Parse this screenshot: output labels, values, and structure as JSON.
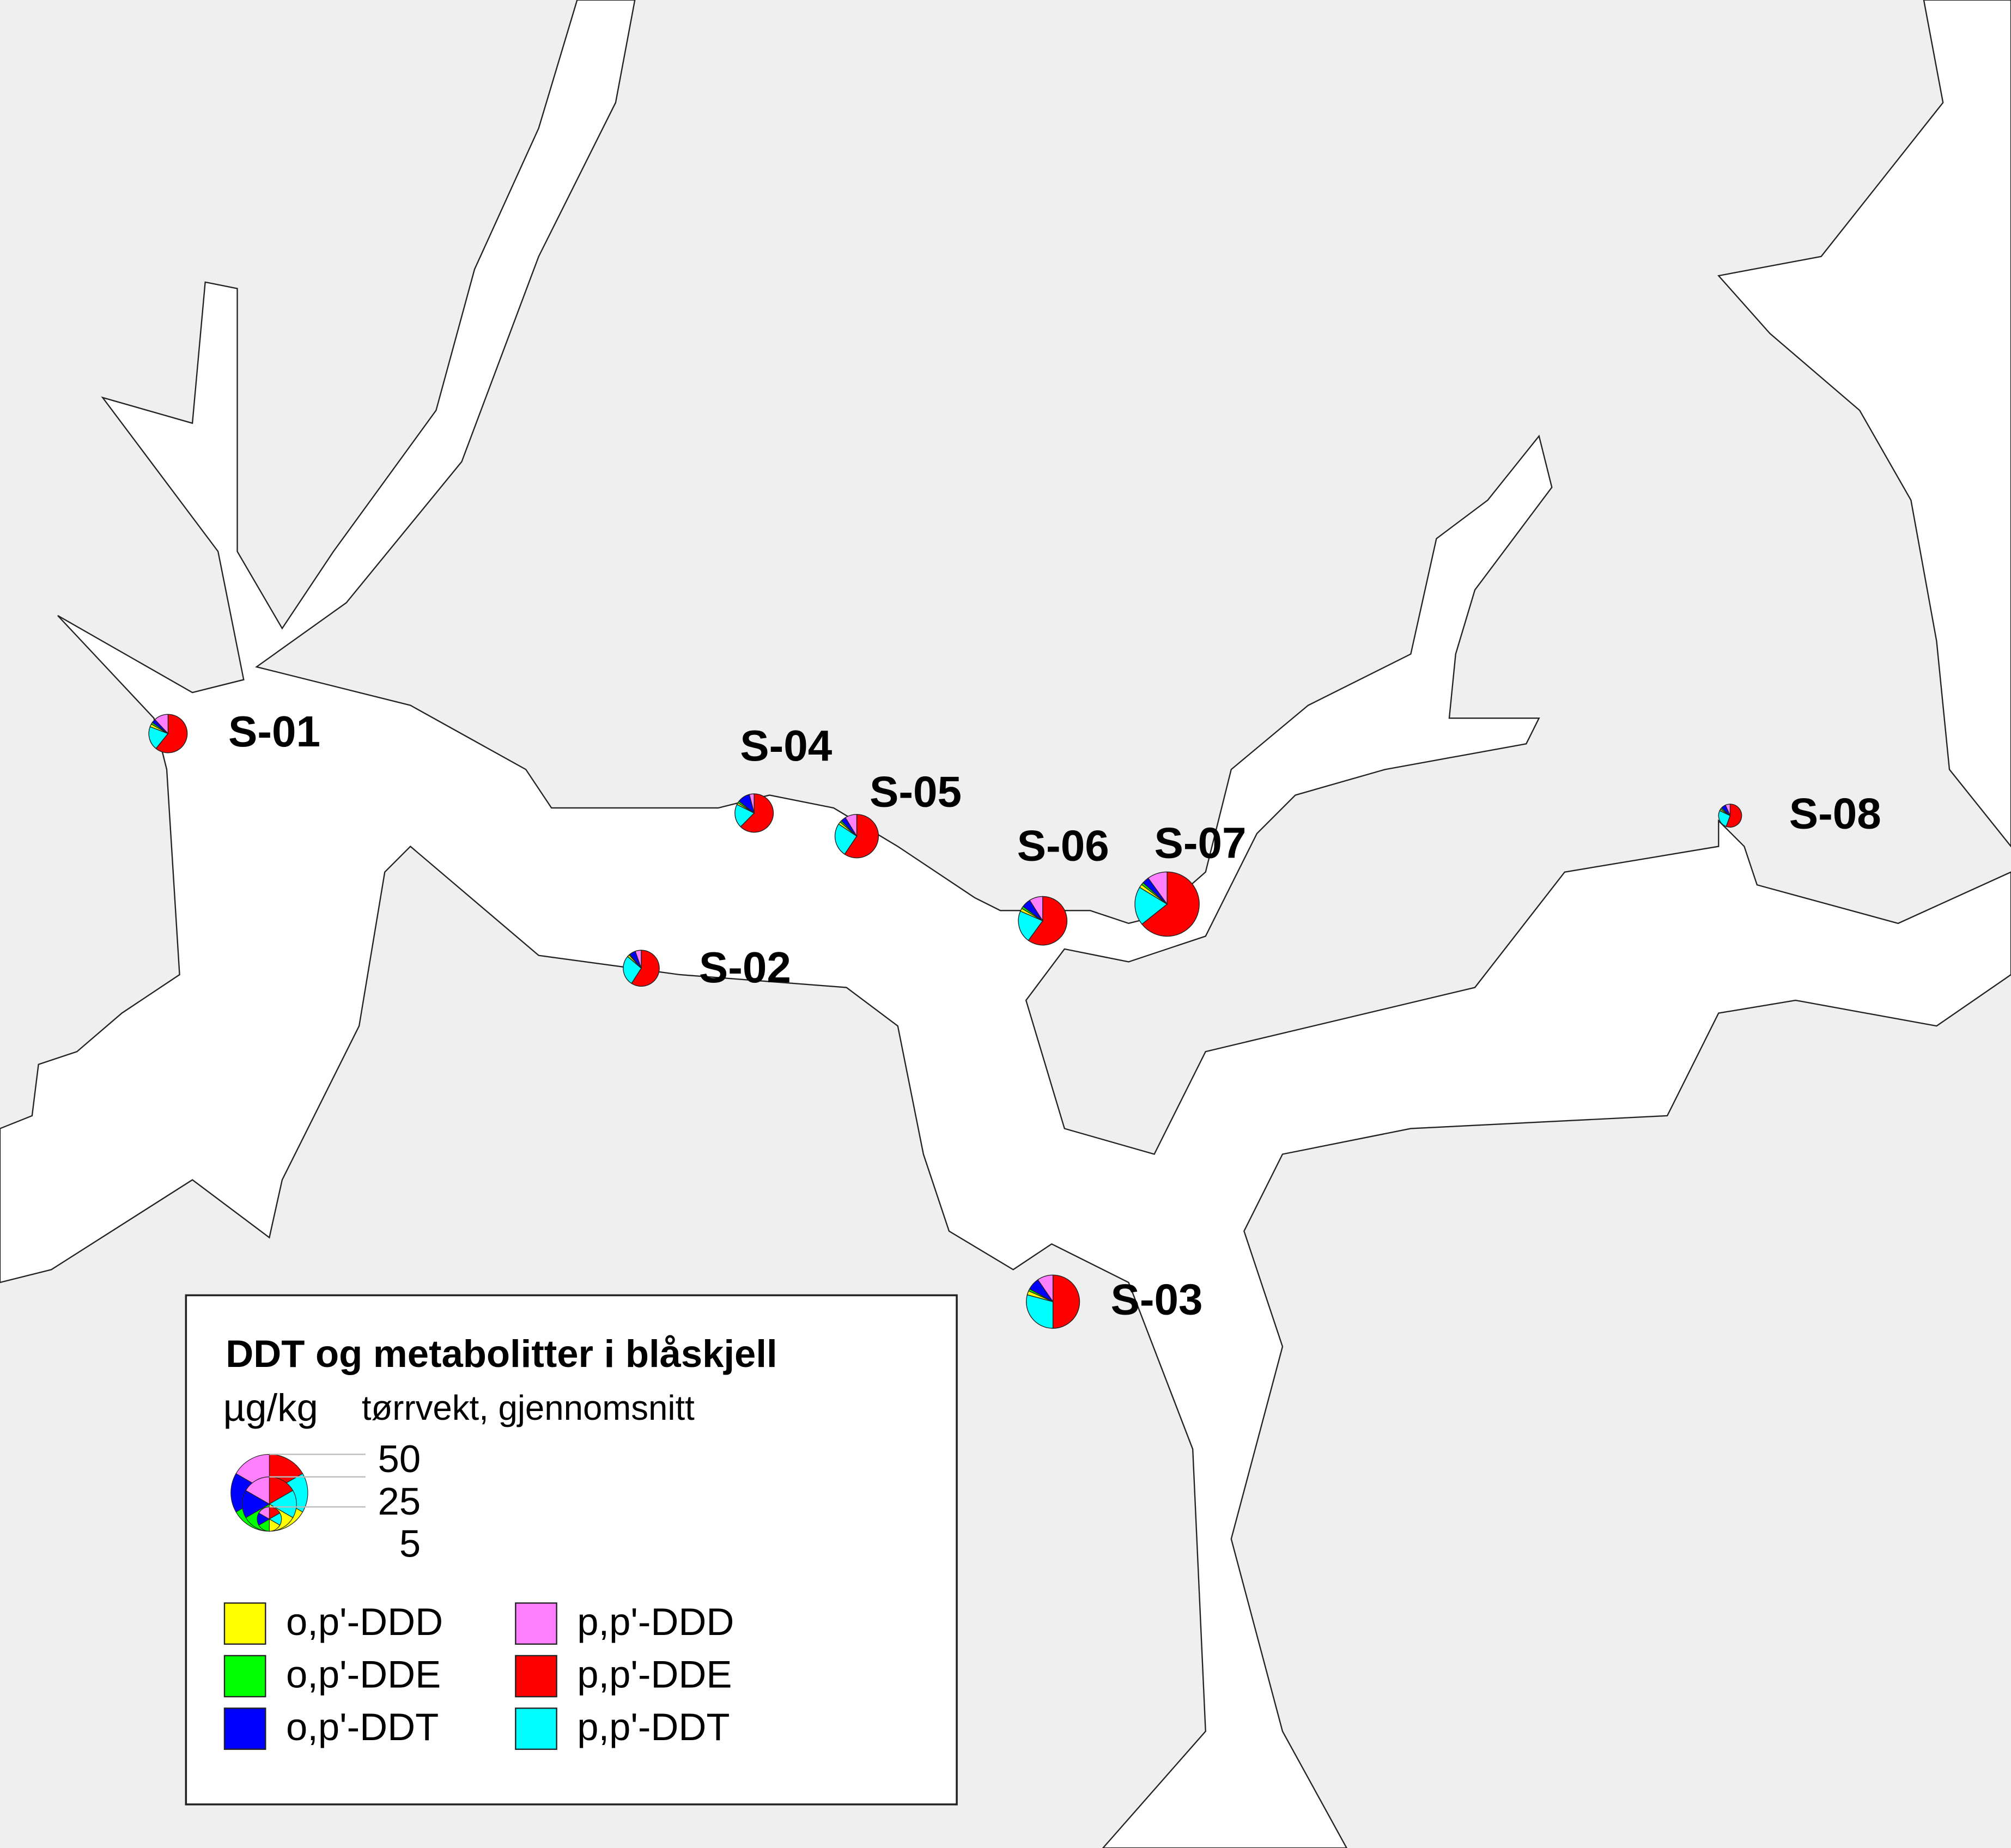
{
  "chart_data": {
    "type": "pie-map",
    "title": "DDT og metabolitter i blåskjell",
    "unit": "µg/kg",
    "subtitle": "tørrvekt, gjennomsnitt",
    "series": [
      {
        "name": "o,p'-DDD",
        "color": "#ffff00"
      },
      {
        "name": "o,p'-DDE",
        "color": "#00ff00"
      },
      {
        "name": "o,p'-DDT",
        "color": "#0000ff"
      },
      {
        "name": "p,p'-DDD",
        "color": "#ff80ff"
      },
      {
        "name": "p,p'-DDE",
        "color": "#ff0000"
      },
      {
        "name": "p,p'-DDT",
        "color": "#00ffff"
      }
    ],
    "stations": [
      {
        "name": "S-01",
        "values": [
          0.3,
          0.2,
          0.4,
          1.5,
          7.6,
          2.5
        ]
      },
      {
        "name": "S-04",
        "values": [
          0.2,
          0.2,
          1.3,
          0.5,
          7.8,
          2.5
        ]
      },
      {
        "name": "S-05",
        "values": [
          0.3,
          0.2,
          0.6,
          1.4,
          9.5,
          4.0
        ]
      },
      {
        "name": "S-06",
        "values": [
          0.4,
          0.3,
          1.2,
          1.8,
          12.0,
          4.3
        ]
      },
      {
        "name": "S-07",
        "values": [
          0.6,
          0.4,
          1.2,
          3.5,
          22.5,
          6.8
        ]
      },
      {
        "name": "S-02",
        "values": [
          0.2,
          0.1,
          0.6,
          0.6,
          6.5,
          3.0
        ]
      },
      {
        "name": "S-03",
        "values": [
          0.6,
          0.3,
          1.8,
          2.3,
          12.0,
          7.0
        ]
      },
      {
        "name": "S-08",
        "values": [
          0.1,
          0.1,
          0.3,
          0.3,
          2.5,
          1.2
        ]
      }
    ],
    "size_legend": [
      50,
      25,
      5
    ]
  }
}
